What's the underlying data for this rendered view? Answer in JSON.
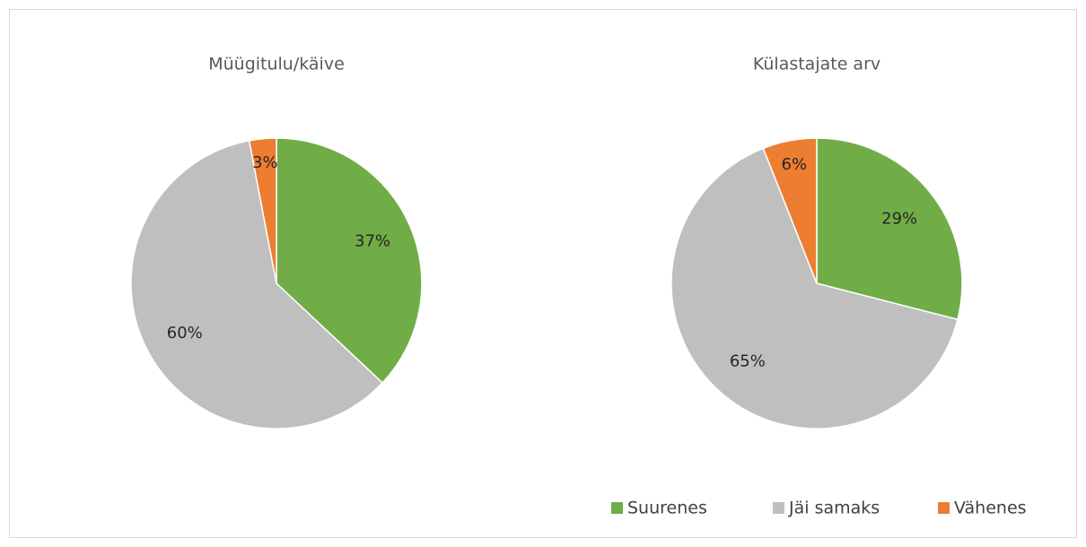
{
  "chart_data": [
    {
      "type": "pie",
      "title": "Müügitulu/käive",
      "categories": [
        "Suurenes",
        "Jäi samaks",
        "Vähenes"
      ],
      "values": [
        37,
        60,
        3
      ],
      "value_labels": [
        "37%",
        "60%",
        "3%"
      ],
      "colors": [
        "#70ad47",
        "#bfbfbf",
        "#ed7d31"
      ]
    },
    {
      "type": "pie",
      "title": "Külastajate arv",
      "categories": [
        "Suurenes",
        "Jäi samaks",
        "Vähenes"
      ],
      "values": [
        29,
        65,
        6
      ],
      "value_labels": [
        "29%",
        "65%",
        "6%"
      ],
      "colors": [
        "#70ad47",
        "#bfbfbf",
        "#ed7d31"
      ]
    }
  ]
}
